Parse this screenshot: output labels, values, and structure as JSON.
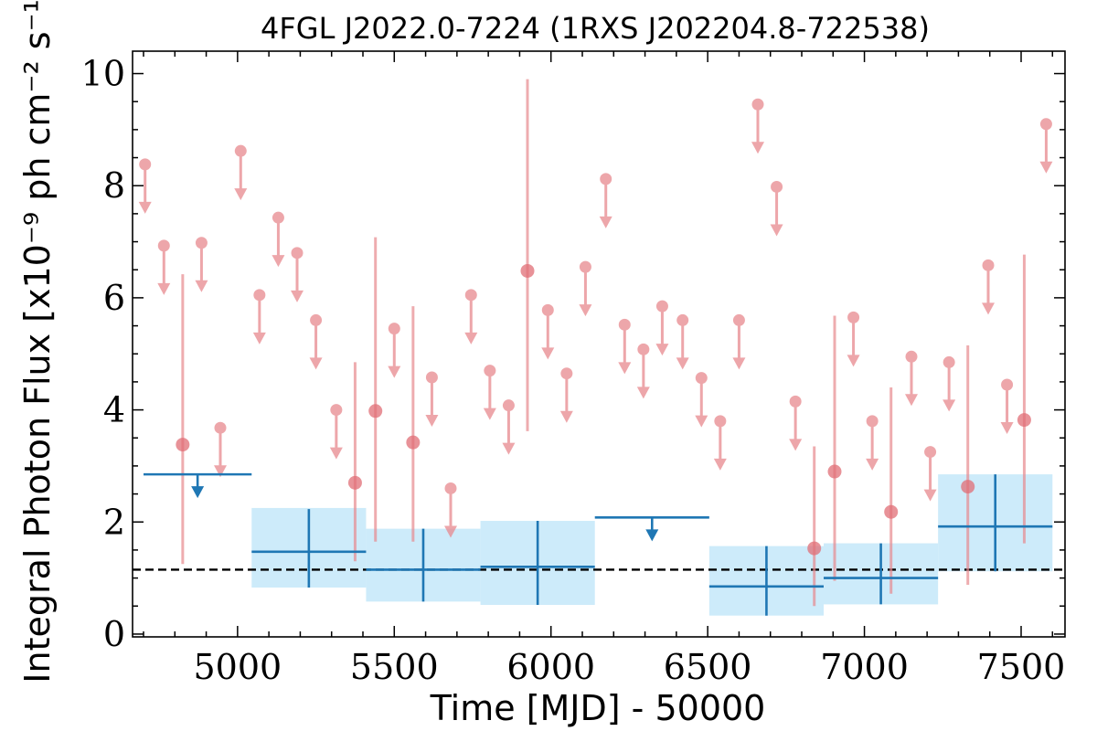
{
  "chart_data": {
    "type": "scatter",
    "title": "4FGL J2022.0-7224 (1RXS J202204.8-722538)",
    "xlabel": "Time [MJD] - 50000",
    "ylabel": "Integral Photon Flux [x10⁻⁹ ph cm⁻² s⁻¹]",
    "xlim": [
      4665,
      7640
    ],
    "ylim": [
      -0.05,
      10.4
    ],
    "x_ticks": [
      5000,
      5500,
      6000,
      6500,
      7000,
      7500
    ],
    "x_tick_labels": [
      "5000",
      "5500",
      "6000",
      "6500",
      "7000",
      "7500"
    ],
    "y_ticks": [
      0,
      2,
      4,
      6,
      8,
      10
    ],
    "y_tick_labels": [
      "0",
      "2",
      "4",
      "6",
      "8",
      "10"
    ],
    "grid": false,
    "reference_line": {
      "y": 1.15,
      "style": "dashed",
      "color": "#000000"
    },
    "colors": {
      "monthly": "#e8898e",
      "yearly": "#1f77b4",
      "yearly_band": "#cdebfa"
    },
    "series": [
      {
        "kind": "upper_limits",
        "color": "#e8898e",
        "points": [
          {
            "x": 4705,
            "y": 8.38
          },
          {
            "x": 4765,
            "y": 6.93
          },
          {
            "x": 4885,
            "y": 6.98
          },
          {
            "x": 4945,
            "y": 3.68
          },
          {
            "x": 5010,
            "y": 8.62
          },
          {
            "x": 5070,
            "y": 6.05
          },
          {
            "x": 5130,
            "y": 7.43
          },
          {
            "x": 5190,
            "y": 6.8
          },
          {
            "x": 5250,
            "y": 5.6
          },
          {
            "x": 5315,
            "y": 4.0
          },
          {
            "x": 5500,
            "y": 5.45
          },
          {
            "x": 5620,
            "y": 4.58
          },
          {
            "x": 5680,
            "y": 2.6
          },
          {
            "x": 5745,
            "y": 6.05
          },
          {
            "x": 5805,
            "y": 4.7
          },
          {
            "x": 5865,
            "y": 4.08
          },
          {
            "x": 5990,
            "y": 5.78
          },
          {
            "x": 6050,
            "y": 4.65
          },
          {
            "x": 6110,
            "y": 6.55
          },
          {
            "x": 6175,
            "y": 8.12
          },
          {
            "x": 6235,
            "y": 5.52
          },
          {
            "x": 6295,
            "y": 5.08
          },
          {
            "x": 6355,
            "y": 5.85
          },
          {
            "x": 6420,
            "y": 5.6
          },
          {
            "x": 6480,
            "y": 4.57
          },
          {
            "x": 6540,
            "y": 3.8
          },
          {
            "x": 6600,
            "y": 5.6
          },
          {
            "x": 6660,
            "y": 9.45
          },
          {
            "x": 6720,
            "y": 7.98
          },
          {
            "x": 6780,
            "y": 4.15
          },
          {
            "x": 6965,
            "y": 5.65
          },
          {
            "x": 7025,
            "y": 3.8
          },
          {
            "x": 7150,
            "y": 4.95
          },
          {
            "x": 7210,
            "y": 3.25
          },
          {
            "x": 7270,
            "y": 4.85
          },
          {
            "x": 7395,
            "y": 6.58
          },
          {
            "x": 7455,
            "y": 4.45
          },
          {
            "x": 7580,
            "y": 9.1
          }
        ]
      },
      {
        "kind": "detections",
        "color": "#e8898e",
        "points": [
          {
            "x": 4825,
            "y": 3.38,
            "ylo": 1.25,
            "yhi": 6.42
          },
          {
            "x": 5375,
            "y": 2.7,
            "ylo": 1.3,
            "yhi": 4.85
          },
          {
            "x": 5440,
            "y": 3.98,
            "ylo": 1.65,
            "yhi": 7.08
          },
          {
            "x": 5560,
            "y": 3.42,
            "ylo": 1.65,
            "yhi": 5.85
          },
          {
            "x": 5925,
            "y": 6.48,
            "ylo": 3.62,
            "yhi": 9.9
          },
          {
            "x": 6840,
            "y": 1.53,
            "ylo": 0.5,
            "yhi": 3.35
          },
          {
            "x": 6905,
            "y": 2.9,
            "ylo": 0.95,
            "yhi": 5.68
          },
          {
            "x": 7085,
            "y": 2.18,
            "ylo": 0.72,
            "yhi": 4.4
          },
          {
            "x": 7330,
            "y": 2.63,
            "ylo": 0.88,
            "yhi": 5.15
          },
          {
            "x": 7510,
            "y": 3.82,
            "ylo": 1.62,
            "yhi": 6.77
          }
        ]
      },
      {
        "kind": "yearly_bins",
        "color": "#1f77b4",
        "bins": [
          {
            "x0": 4700,
            "x1": 5045,
            "y": 2.85,
            "upper_limit": true
          },
          {
            "x0": 5045,
            "x1": 5410,
            "y": 1.47,
            "ylo": 0.83,
            "yhi": 2.23,
            "band": [
              0.83,
              2.25
            ]
          },
          {
            "x0": 5410,
            "x1": 5775,
            "y": 1.15,
            "ylo": 0.58,
            "yhi": 1.88,
            "band": [
              0.58,
              1.88
            ]
          },
          {
            "x0": 5775,
            "x1": 6140,
            "y": 1.2,
            "ylo": 0.52,
            "yhi": 2.02,
            "band": [
              0.52,
              2.02
            ]
          },
          {
            "x0": 6140,
            "x1": 6505,
            "y": 2.08,
            "upper_limit": true
          },
          {
            "x0": 6505,
            "x1": 6870,
            "y": 0.85,
            "ylo": 0.33,
            "yhi": 1.57,
            "band": [
              0.33,
              1.57
            ]
          },
          {
            "x0": 6870,
            "x1": 7235,
            "y": 1.0,
            "ylo": 0.53,
            "yhi": 1.62,
            "band": [
              0.53,
              1.62
            ]
          },
          {
            "x0": 7235,
            "x1": 7600,
            "y": 1.92,
            "ylo": 1.12,
            "yhi": 2.85,
            "band": [
              1.12,
              2.85
            ]
          }
        ]
      }
    ]
  }
}
